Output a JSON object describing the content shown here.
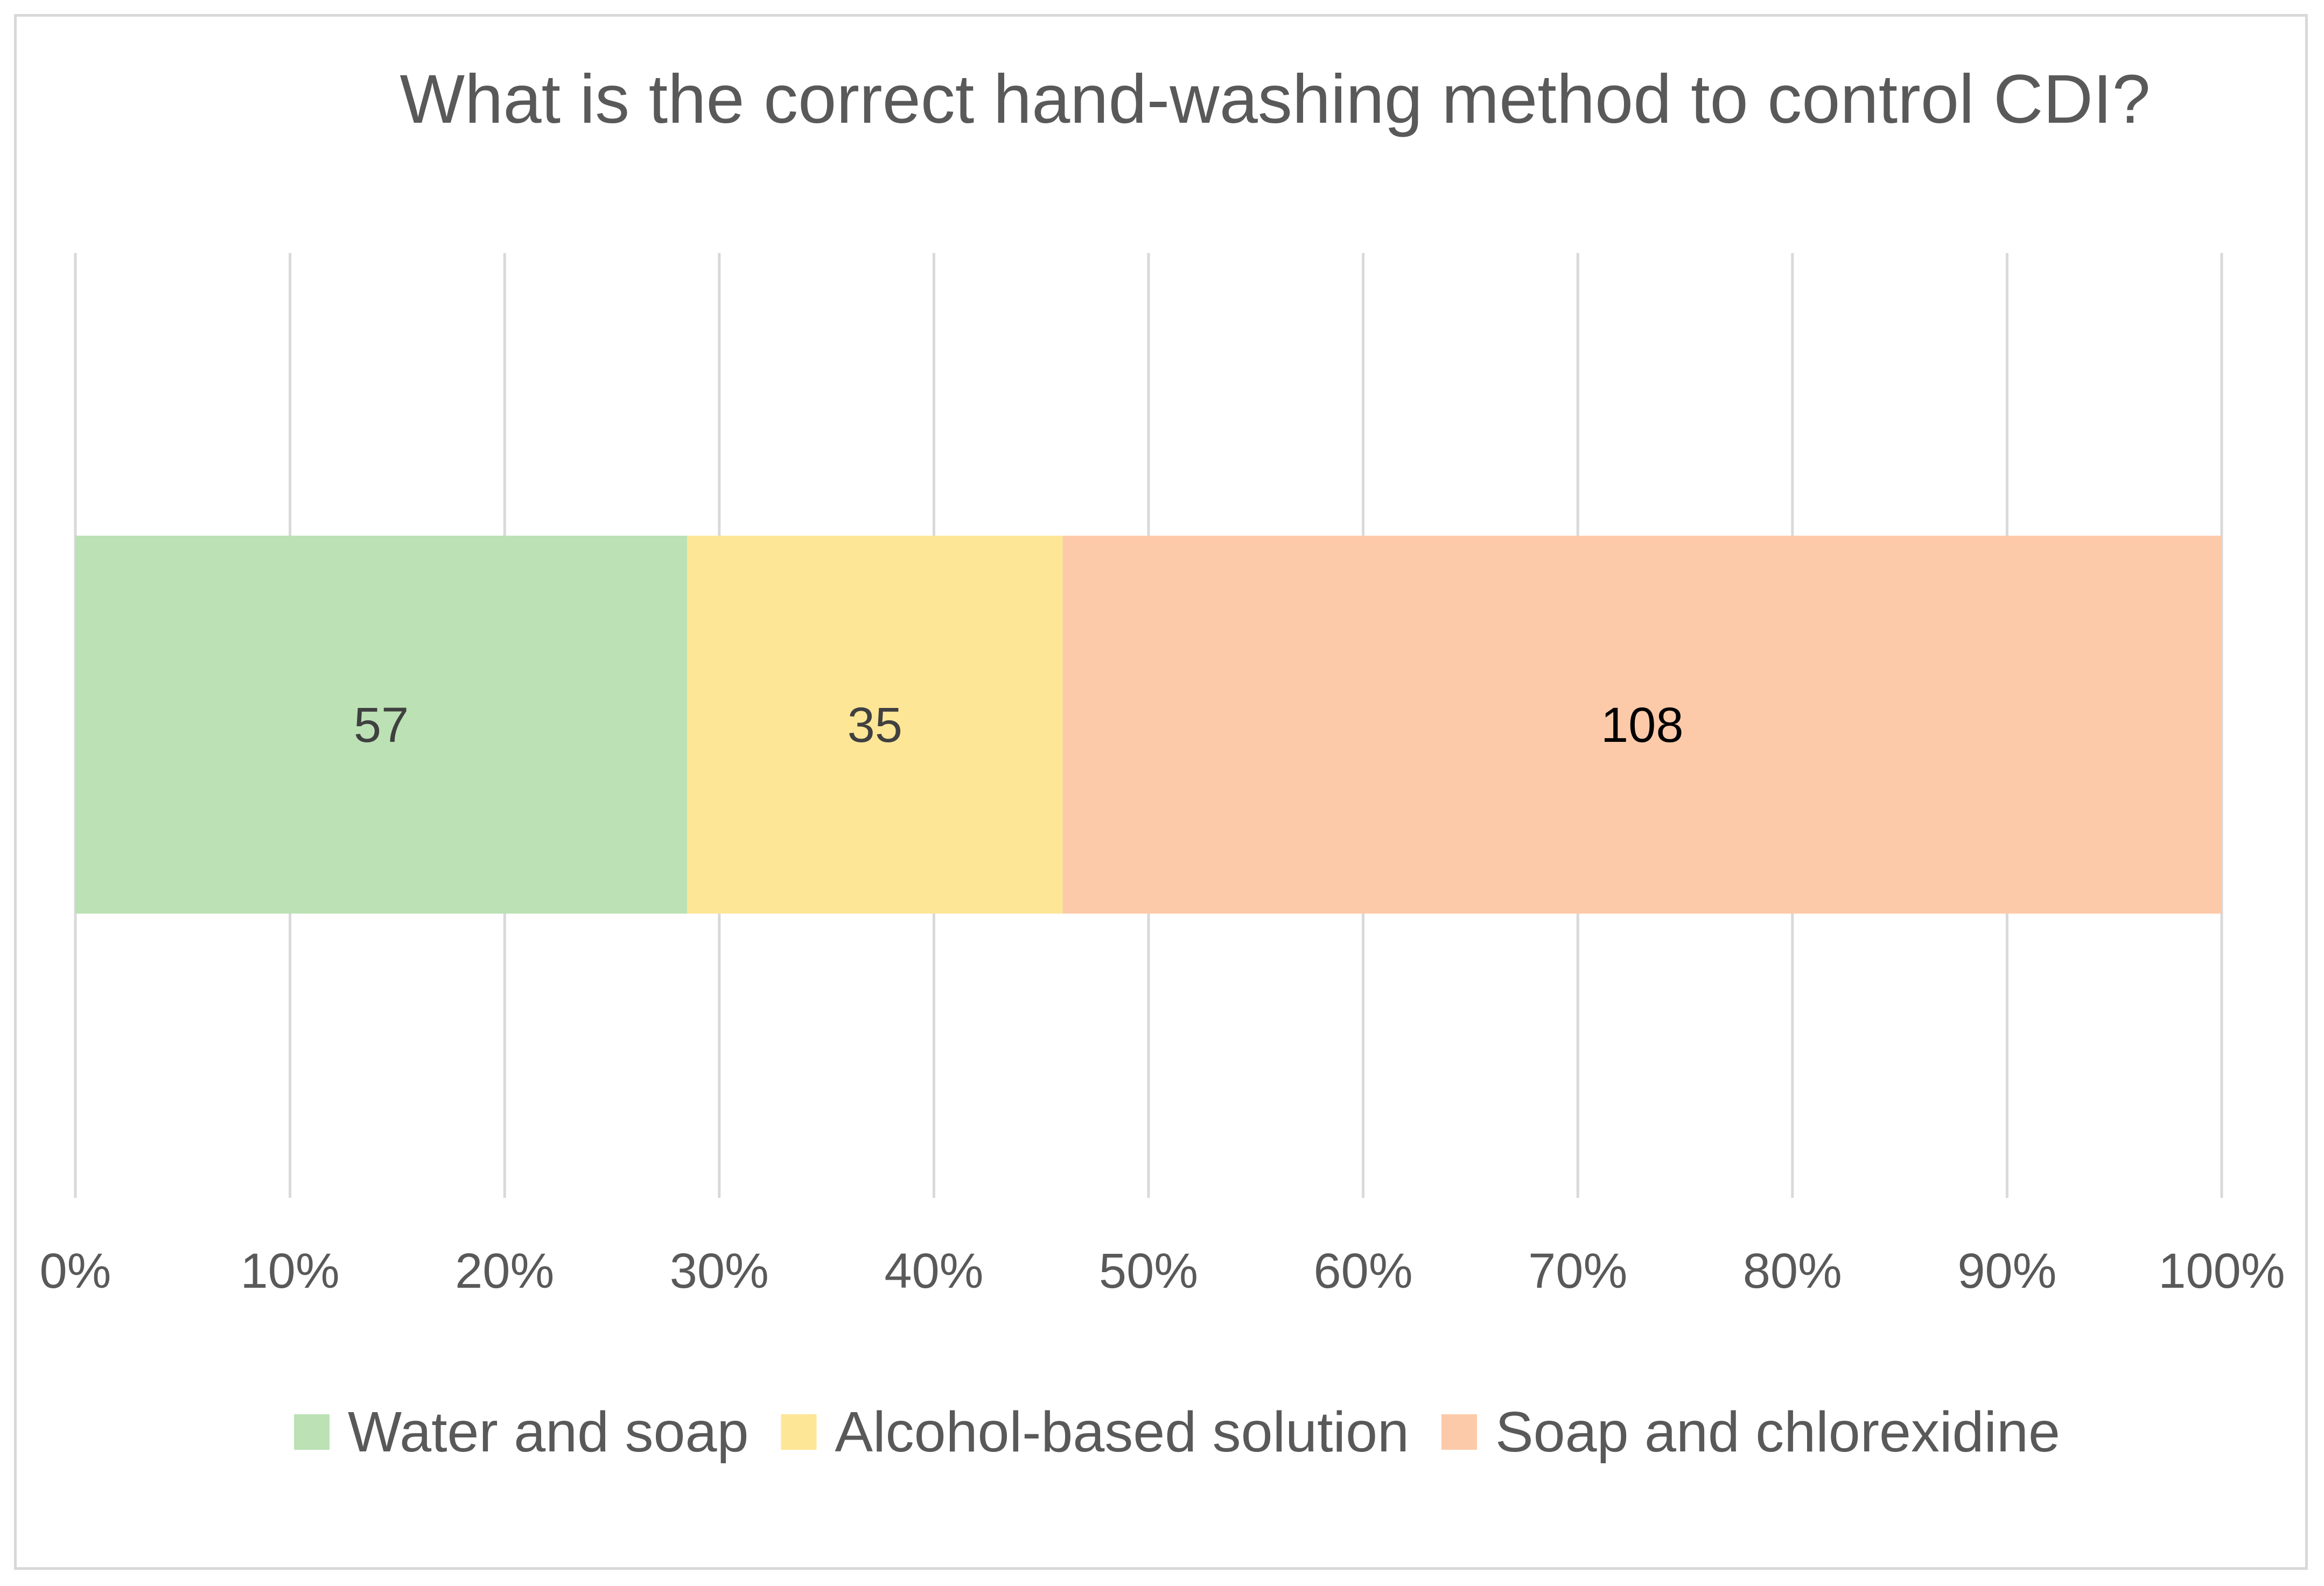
{
  "chart_data": {
    "type": "bar",
    "orientation": "horizontal",
    "stacked": "percent",
    "title": "What is the correct hand-washing method to control CDI?",
    "xlabel": "",
    "ylabel": "",
    "xlim": [
      0,
      100
    ],
    "x_ticks": [
      "0%",
      "10%",
      "20%",
      "30%",
      "40%",
      "50%",
      "60%",
      "70%",
      "80%",
      "90%",
      "100%"
    ],
    "grid": "vertical",
    "legend_position": "bottom",
    "series": [
      {
        "name": "Water and soap",
        "value": 57,
        "color": "#bbe1b4",
        "label_color": "#404040"
      },
      {
        "name": "Alcohol-based solution",
        "value": 35,
        "color": "#fee697",
        "label_color": "#404040"
      },
      {
        "name": "Soap and chlorexidine",
        "value": 108,
        "color": "#fdcaa9",
        "label_color": "#000000"
      }
    ]
  }
}
